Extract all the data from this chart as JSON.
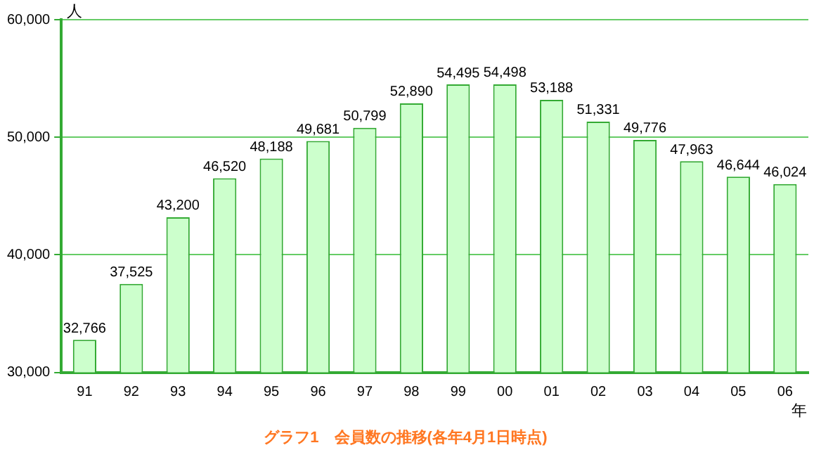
{
  "chart_data": {
    "type": "bar",
    "title": "グラフ1　会員数の推移(各年4月1日時点)",
    "xlabel": "年",
    "ylabel": "人",
    "categories": [
      "91",
      "92",
      "93",
      "94",
      "95",
      "96",
      "97",
      "98",
      "99",
      "00",
      "01",
      "02",
      "03",
      "04",
      "05",
      "06"
    ],
    "values": [
      32766,
      37525,
      43200,
      46520,
      48188,
      49681,
      50799,
      52890,
      54495,
      54498,
      53188,
      51331,
      49776,
      47963,
      46644,
      46024
    ],
    "color": "#ccffcc",
    "ylim": [
      30000,
      60000
    ],
    "yticks": [
      {
        "value": 30000,
        "label": "30,000"
      },
      {
        "value": 40000,
        "label": "40,000"
      },
      {
        "value": 50000,
        "label": "50,000"
      },
      {
        "value": 60000,
        "label": "60,000"
      }
    ],
    "value_labels": [
      "32,766",
      "37,525",
      "43,200",
      "46,520",
      "48,188",
      "49,681",
      "50,799",
      "52,890",
      "54,495",
      "54,498",
      "53,188",
      "51,331",
      "49,776",
      "47,963",
      "46,644",
      "46,024"
    ],
    "grid": "y"
  }
}
